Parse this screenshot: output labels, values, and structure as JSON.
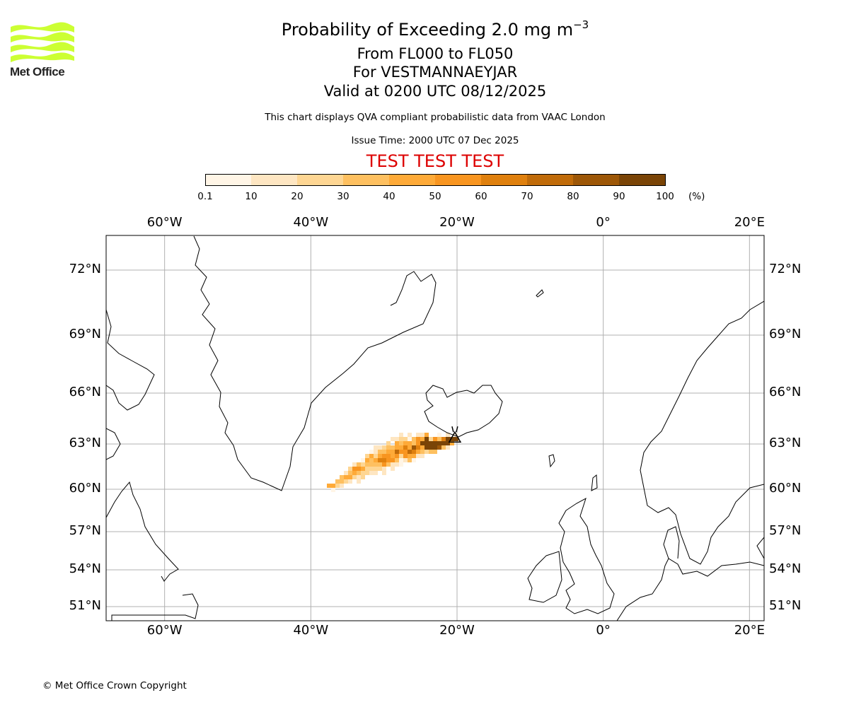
{
  "header": {
    "title": "Probability of Exceeding 2.0 mg m",
    "title_superscript": "−3",
    "subtitle_levels": "From FL000 to FL050",
    "subtitle_location": "For VESTMANNAEYJAR",
    "subtitle_valid": "Valid at 0200 UTC 08/12/2025",
    "note": "This chart displays QVA compliant probabilistic data from VAAC London",
    "issue_time": "Issue Time: 2000 UTC 07 Dec 2025",
    "test_banner": "TEST TEST TEST",
    "test_color": "#dd0000"
  },
  "logo": {
    "text": "Met Office",
    "color": "#ccff33"
  },
  "colorbar": {
    "ticks": [
      "0.1",
      "10",
      "20",
      "30",
      "40",
      "50",
      "60",
      "70",
      "80",
      "90",
      "100"
    ],
    "unit": "(%)",
    "colors": [
      "#fff5e6",
      "#fee6c2",
      "#fed693",
      "#fec060",
      "#feaa38",
      "#f89520",
      "#df800e",
      "#c06b09",
      "#9d5707",
      "#7a4406"
    ]
  },
  "map": {
    "lon_range": [
      -68,
      22
    ],
    "lat_range": [
      50,
      74
    ],
    "lon_gridlines": [
      -60,
      -40,
      -20,
      0,
      20
    ],
    "lon_labels": [
      "60°W",
      "40°W",
      "20°W",
      "0°",
      "20°E"
    ],
    "lat_gridlines": [
      72,
      69,
      66,
      63,
      60,
      57,
      54,
      51
    ],
    "lat_labels": [
      "72°N",
      "69°N",
      "66°N",
      "63°N",
      "60°N",
      "57°N",
      "54°N",
      "51°N"
    ],
    "volcano": {
      "name": "Vestmannaeyjar",
      "lon": -20.3,
      "lat": 63.45
    }
  },
  "footer": {
    "copyright": "© Met Office Crown Copyright"
  }
}
